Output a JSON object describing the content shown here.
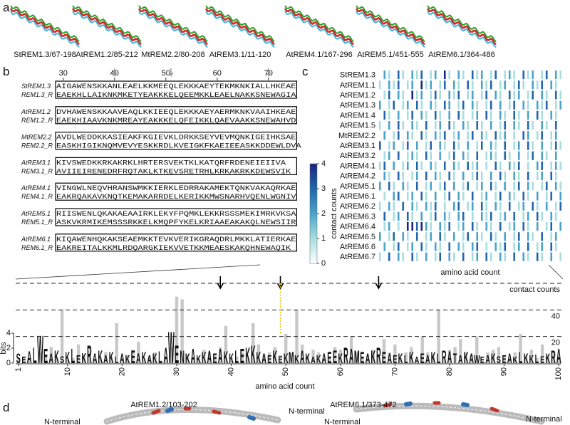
{
  "panel_labels": [
    "a",
    "b",
    "c",
    "d"
  ],
  "structures": [
    "StREM1.3/67-198",
    "AtREM1.2/85-212",
    "MtREM2.2/80-208",
    "AtREM3.1/11-120",
    "AtREM4.1/167-296",
    "AtREM5.1/451-555",
    "AtREM6.1/364-486"
  ],
  "alignment": {
    "ticks": [
      30,
      40,
      50,
      60,
      70
    ],
    "first_position": 29,
    "blocks": [
      {
        "names": [
          "StREM1.3",
          "REM1.3_R"
        ],
        "seqs": [
          "AIGAWENSKKANLEAELKKMEEQLEKKKAEYTEKMKNKIALLHKEAE",
          "EAEKHLLAIKNKMKETYEAKKKELQEEMKKLEAELNAKKSNEWAGIA"
        ]
      },
      {
        "names": [
          "AtREM1.2",
          "REM1.2_R"
        ],
        "seqs": [
          "DVHAWENSKKAAVEAQLKKIEEQLEKKKAEYAERMKNKVAAIHKEAE",
          "EAEKHIAAVKNKMREAYEAKKKELQFEIKKLQAEVAAKKSNEWAHVD"
        ]
      },
      {
        "names": [
          "MtREM2.2",
          "REM2.2_R"
        ],
        "seqs": [
          "AVDLWEDDKKASIEAKFKGIEVKLDRKKSEYVEVMQNKIGEIHKSAE",
          "EASKHIGIKNQMVEVYESKKRDLKVEIGKFKAEIEEASKKDDEWLDVA"
        ]
      },
      {
        "names": [
          "AtREM3.1",
          "REM3.1_R"
        ],
        "seqs": [
          "KIVSWEDKKRKAKRKLHRTERSVEKTKLKATQRFRDENEIEIIVA",
          "AVIIEIRENEDRFRQTAKLKTKEVSRETRHLKRKAKRKKDEWSVIK"
        ]
      },
      {
        "names": [
          "AtREM4.1",
          "REM4.1_R"
        ],
        "seqs": [
          "VINGWLNEQVHRANSWMKKIERKLEDRRAKAMEKTQNKVAKAQRKAE",
          "EAKRQAKAVKNQTKEMAKARRDELKERIKKMWSNARHVQENLWGNIV"
        ]
      },
      {
        "names": [
          "AtREM5.1",
          "REM5.1_R"
        ],
        "seqs": [
          "RIISWENLQKAKAEAAIRKLEKYFPQMKLEKKRSSSMEKIMRKVKSA",
          "ASKVKRMIKEMSSSRKKELKMQPFYKELKRIAAEAKAKQLNEWSIIR"
        ]
      },
      {
        "names": [
          "AtREM6.1",
          "REM6.1_R"
        ],
        "seqs": [
          "KIQAWENHQKAKSEAEMKKTEVKVERIKGRAQDRLMKKLATIERKAE",
          "EAKREITALKKMLRDQARGKIEKVVETKKMEAESKAKQHNEWAQIK"
        ]
      }
    ]
  },
  "heatmap": {
    "rows": [
      "StREM1.3",
      "AtREM1.1",
      "AtREM1.2",
      "AtREM1.3",
      "AtREM1.4",
      "AtREM1.5",
      "MtREM2.2",
      "AtREM3.1",
      "AtREM3.2",
      "AtREM4.1",
      "AtREM4.2",
      "AtREM5.1",
      "AtREM6.1",
      "AtREM6.2",
      "AtREM6.3",
      "AtREM6.4",
      "AtREM6.5",
      "AtREM6.6",
      "AtREM6.7"
    ],
    "values": [
      [
        0,
        2,
        1,
        0,
        3,
        1,
        0,
        2,
        1,
        3,
        0,
        1,
        2,
        0,
        4,
        1,
        0,
        2,
        1,
        0,
        3,
        1,
        2,
        0,
        1,
        3,
        0,
        1,
        2,
        1,
        0,
        3,
        1,
        2,
        0,
        1,
        3,
        0,
        2,
        1
      ],
      [
        1,
        0,
        2,
        1,
        3,
        0,
        1,
        2,
        0,
        4,
        1,
        2,
        0,
        1,
        3,
        0,
        2,
        1,
        0,
        3,
        1,
        0,
        2,
        1,
        3,
        0,
        1,
        2,
        0,
        1,
        3,
        1,
        0,
        2,
        1,
        3,
        0,
        2,
        1,
        0
      ],
      [
        0,
        1,
        3,
        0,
        2,
        1,
        0,
        4,
        1,
        2,
        0,
        1,
        3,
        1,
        0,
        2,
        1,
        3,
        0,
        1,
        2,
        0,
        1,
        3,
        0,
        2,
        1,
        0,
        3,
        1,
        2,
        0,
        1,
        3,
        0,
        2,
        1,
        0,
        3,
        1
      ],
      [
        2,
        0,
        1,
        3,
        0,
        1,
        2,
        0,
        3,
        1,
        0,
        2,
        1,
        0,
        3,
        2,
        0,
        1,
        3,
        0,
        2,
        1,
        0,
        1,
        3,
        0,
        2,
        0,
        1,
        3,
        0,
        2,
        1,
        0,
        2,
        1,
        3,
        0,
        1,
        2
      ],
      [
        0,
        3,
        1,
        0,
        2,
        0,
        1,
        3,
        0,
        2,
        1,
        0,
        3,
        1,
        0,
        2,
        0,
        3,
        1,
        0,
        1,
        2,
        0,
        3,
        1,
        0,
        2,
        1,
        0,
        3,
        1,
        0,
        2,
        0,
        3,
        1,
        0,
        2,
        1,
        0
      ],
      [
        1,
        0,
        2,
        0,
        3,
        1,
        0,
        2,
        1,
        0,
        3,
        0,
        1,
        2,
        0,
        3,
        1,
        0,
        2,
        1,
        0,
        3,
        1,
        0,
        2,
        0,
        1,
        3,
        0,
        2,
        1,
        0,
        3,
        1,
        0,
        2,
        1,
        0,
        3,
        0
      ],
      [
        0,
        2,
        0,
        1,
        3,
        0,
        2,
        1,
        0,
        3,
        1,
        0,
        2,
        1,
        3,
        0,
        1,
        2,
        0,
        1,
        3,
        0,
        2,
        1,
        0,
        3,
        1,
        2,
        0,
        1,
        0,
        3,
        2,
        0,
        1,
        3,
        0,
        1,
        2,
        0
      ],
      [
        3,
        0,
        1,
        2,
        0,
        1,
        3,
        0,
        2,
        0,
        1,
        3,
        0,
        2,
        1,
        0,
        3,
        1,
        0,
        2,
        0,
        1,
        3,
        0,
        2,
        1,
        0,
        3,
        0,
        1,
        2,
        0,
        3,
        1,
        0,
        2,
        0,
        1,
        3,
        1
      ],
      [
        0,
        1,
        2,
        0,
        3,
        0,
        1,
        2,
        1,
        0,
        3,
        1,
        0,
        2,
        0,
        1,
        3,
        0,
        2,
        1,
        0,
        3,
        0,
        1,
        2,
        1,
        0,
        3,
        1,
        0,
        2,
        0,
        1,
        3,
        0,
        2,
        1,
        0,
        2,
        0
      ],
      [
        1,
        3,
        0,
        2,
        0,
        1,
        2,
        0,
        3,
        1,
        0,
        2,
        1,
        0,
        3,
        0,
        2,
        1,
        0,
        3,
        1,
        2,
        0,
        1,
        0,
        3,
        1,
        0,
        2,
        1,
        3,
        0,
        1,
        0,
        2,
        3,
        0,
        1,
        2,
        1
      ],
      [
        0,
        2,
        1,
        0,
        3,
        1,
        0,
        1,
        2,
        0,
        3,
        0,
        2,
        1,
        0,
        3,
        1,
        0,
        2,
        0,
        1,
        3,
        1,
        0,
        2,
        0,
        3,
        1,
        0,
        2,
        1,
        0,
        3,
        0,
        1,
        2,
        0,
        3,
        1,
        0
      ],
      [
        2,
        0,
        3,
        1,
        0,
        2,
        1,
        0,
        3,
        0,
        1,
        2,
        0,
        1,
        3,
        0,
        2,
        0,
        1,
        3,
        0,
        1,
        2,
        0,
        3,
        1,
        0,
        2,
        0,
        1,
        3,
        0,
        2,
        1,
        0,
        1,
        3,
        0,
        2,
        1
      ],
      [
        0,
        1,
        0,
        2,
        3,
        0,
        1,
        2,
        0,
        3,
        1,
        0,
        2,
        0,
        1,
        3,
        0,
        2,
        1,
        0,
        3,
        0,
        1,
        2,
        0,
        1,
        3,
        0,
        2,
        1,
        0,
        3,
        1,
        0,
        2,
        0,
        1,
        3,
        0,
        2
      ],
      [
        1,
        0,
        2,
        1,
        0,
        3,
        0,
        2,
        1,
        0,
        2,
        1,
        3,
        0,
        1,
        0,
        2,
        3,
        0,
        1,
        2,
        0,
        3,
        1,
        0,
        2,
        1,
        0,
        3,
        0,
        1,
        2,
        0,
        3,
        1,
        0,
        2,
        0,
        1,
        3
      ],
      [
        0,
        3,
        0,
        1,
        2,
        0,
        3,
        1,
        0,
        2,
        0,
        1,
        3,
        0,
        2,
        1,
        0,
        2,
        3,
        0,
        1,
        0,
        2,
        1,
        3,
        0,
        1,
        2,
        0,
        3,
        0,
        1,
        2,
        0,
        3,
        1,
        0,
        2,
        1,
        0
      ],
      [
        0,
        1,
        2,
        0,
        1,
        0,
        4,
        4,
        3,
        4,
        2,
        1,
        0,
        2,
        1,
        3,
        0,
        1,
        2,
        0,
        3,
        1,
        0,
        2,
        1,
        0,
        3,
        0,
        1,
        2,
        0,
        3,
        1,
        0,
        2,
        0,
        1,
        3,
        0,
        2
      ],
      [
        2,
        0,
        1,
        3,
        0,
        2,
        1,
        0,
        3,
        0,
        1,
        2,
        0,
        3,
        1,
        0,
        2,
        0,
        1,
        3,
        0,
        2,
        1,
        0,
        3,
        1,
        0,
        2,
        0,
        1,
        3,
        0,
        2,
        1,
        0,
        3,
        0,
        1,
        2,
        0
      ],
      [
        0,
        2,
        0,
        1,
        3,
        0,
        1,
        2,
        0,
        3,
        1,
        0,
        2,
        1,
        0,
        3,
        0,
        2,
        1,
        0,
        2,
        3,
        0,
        1,
        0,
        2,
        1,
        3,
        0,
        1,
        2,
        0,
        3,
        0,
        1,
        2,
        0,
        3,
        1,
        0
      ],
      [
        1,
        0,
        3,
        0,
        2,
        1,
        0,
        3,
        1,
        0,
        2,
        0,
        1,
        3,
        0,
        2,
        1,
        0,
        3,
        0,
        1,
        2,
        0,
        3,
        1,
        0,
        2,
        1,
        0,
        3,
        0,
        2,
        1,
        0,
        3,
        1,
        0,
        2,
        0,
        1
      ]
    ],
    "xlabel": "amino acid count",
    "colorbar": {
      "label": "contact counts",
      "ticks": [
        0,
        1,
        2,
        3,
        4
      ],
      "lim": [
        0,
        4
      ]
    }
  },
  "logo": {
    "letters": "SEALWEAKSKLEKRAKAKLAKEAKAKLAWENKAKKAEAKKLEKKKAEKEKMKAKAKAEEKRAMEAKREAEKLKAEAKLRATAKAWEAKSEAKLKKLEKRA",
    "bits": [
      1.2,
      0.8,
      1.5,
      2.0,
      3.5,
      1.8,
      1.2,
      1.6,
      0.9,
      1.4,
      1.8,
      1.0,
      1.3,
      2.2,
      1.2,
      1.6,
      1.0,
      1.4,
      0.8,
      1.2,
      1.0,
      1.6,
      1.2,
      1.4,
      1.0,
      1.2,
      1.5,
      2.0,
      4.0,
      2.2,
      1.6,
      1.2,
      1.8,
      1.0,
      1.4,
      1.6,
      1.2,
      1.8,
      1.5,
      1.2,
      1.6,
      1.8,
      2.0,
      2.2,
      1.4,
      1.2,
      1.0,
      1.6,
      0.9,
      1.2,
      1.4,
      1.0,
      1.6,
      1.2,
      0.8,
      1.0,
      1.2,
      1.4,
      1.6,
      1.2,
      2.0,
      1.8,
      1.6,
      1.4,
      1.2,
      1.6,
      2.0,
      1.4,
      1.2,
      1.0,
      1.2,
      1.0,
      1.4,
      0.8,
      1.2,
      1.0,
      1.4,
      1.2,
      1.6,
      1.5,
      1.2,
      1.0,
      1.4,
      1.2,
      1.0,
      0.8,
      1.0,
      1.2,
      0.9,
      1.0,
      1.2,
      0.8,
      1.4,
      1.2,
      1.0,
      1.1,
      0.9,
      1.2,
      1.6,
      1.8
    ],
    "counts": [
      3,
      5,
      4,
      2,
      8,
      6,
      12,
      4,
      40,
      3,
      4,
      14,
      6,
      10,
      3,
      4,
      8,
      5,
      30,
      4,
      6,
      10,
      16,
      3,
      5,
      8,
      2,
      4,
      12,
      50,
      48,
      6,
      3,
      4,
      10,
      8,
      6,
      12,
      28,
      4,
      5,
      8,
      4,
      30,
      14,
      6,
      8,
      12,
      6,
      22,
      8,
      40,
      14,
      6,
      10,
      8,
      4,
      5,
      12,
      10,
      6,
      20,
      8,
      4,
      6,
      10,
      5,
      18,
      8,
      14,
      4,
      8,
      12,
      3,
      20,
      8,
      6,
      40,
      4,
      10,
      12,
      18,
      8,
      6,
      20,
      3,
      8,
      10,
      12,
      6,
      4,
      8,
      22,
      6,
      10,
      4,
      14,
      6,
      8,
      3
    ],
    "bits_label": "bits",
    "bits_lim": [
      0,
      4
    ],
    "bits_ticks": [
      0,
      2,
      4
    ],
    "count_label": "contact counts",
    "count_lim": [
      0,
      60
    ],
    "count_ticks": [
      20,
      40
    ],
    "xlabel": "amino acid count",
    "xticks": [
      1,
      10,
      20,
      30,
      40,
      50,
      60,
      70,
      80,
      90,
      100
    ],
    "arrow_positions": [
      38,
      49,
      67
    ],
    "dotted_position": 49
  },
  "models": {
    "titles": [
      "AtREM1.2/103-202",
      "AtREM6.1/373-472"
    ],
    "terminal_label": "N-terminal"
  }
}
